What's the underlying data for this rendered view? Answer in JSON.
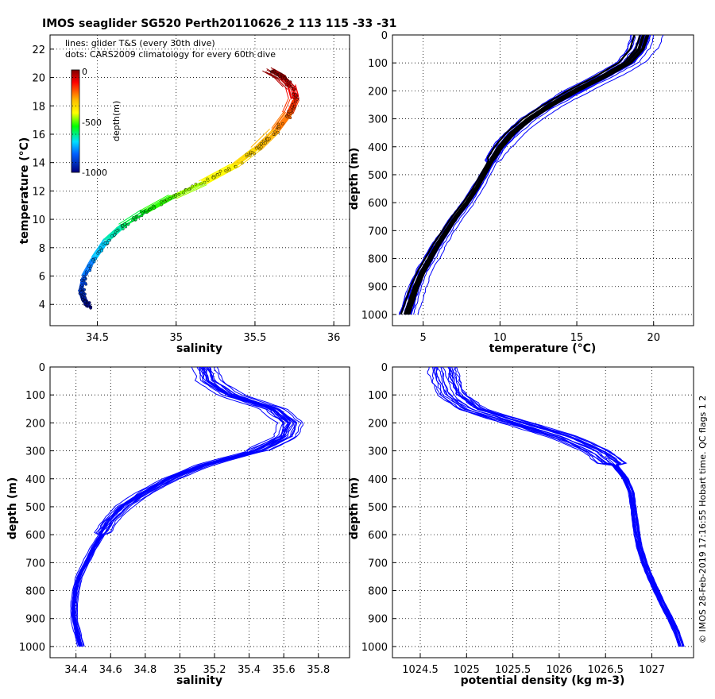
{
  "title": "IMOS seaglider SG520 Perth20110626_2 113  115  -33  -31",
  "footer": "© IMOS 28-Feb-2019 17:16:55 Hobart time. QC flags 1  2",
  "annotations": {
    "line1": "lines: glider T&S (every 30th dive)",
    "line2": "dots: CARS2009 climatology for every 60th dive"
  },
  "colorbar": {
    "label": "depth(m)",
    "ticks": [
      "0",
      "-500",
      "-1000"
    ],
    "range": [
      -1000,
      0
    ]
  },
  "colors": {
    "glider_lines": "#0000ff",
    "climatology": "#000000"
  },
  "chart_data": [
    {
      "id": "ts",
      "type": "line",
      "xlabel": "salinity",
      "ylabel": "temperature (°C)",
      "xlim": [
        34.2,
        36.1
      ],
      "ylim": [
        2.5,
        23
      ],
      "xticks": [
        34.5,
        35,
        35.5,
        36
      ],
      "xticklabels": [
        "34.5",
        "35",
        "35.5",
        "36"
      ],
      "yticks": [
        4,
        6,
        8,
        10,
        12,
        14,
        16,
        18,
        20,
        22
      ],
      "yticklabels": [
        "4",
        "6",
        "8",
        "10",
        "12",
        "14",
        "16",
        "18",
        "20",
        "22"
      ],
      "grid": true,
      "color_by": "depth",
      "profile": {
        "salinity": [
          34.45,
          34.42,
          34.4,
          34.42,
          34.48,
          34.56,
          34.66,
          34.8,
          34.98,
          35.18,
          35.38,
          35.52,
          35.64,
          35.72,
          35.76,
          35.74,
          35.68,
          35.6
        ],
        "temperature": [
          3.8,
          4.3,
          5.0,
          6.0,
          7.2,
          8.5,
          9.5,
          10.5,
          11.6,
          12.6,
          13.8,
          15.0,
          16.3,
          17.5,
          18.5,
          19.3,
          20.0,
          20.5
        ],
        "depth": [
          1000,
          950,
          900,
          830,
          760,
          690,
          620,
          560,
          500,
          440,
          380,
          320,
          260,
          200,
          140,
          80,
          30,
          0
        ]
      }
    },
    {
      "id": "temp_depth",
      "type": "line",
      "xlabel": "temperature (°C)",
      "ylabel": "depth (m)",
      "xlim": [
        3,
        22.6
      ],
      "ylim": [
        1040,
        0
      ],
      "xticks": [
        5,
        10,
        15,
        20
      ],
      "xticklabels": [
        "5",
        "10",
        "15",
        "20"
      ],
      "yticks": [
        0,
        100,
        200,
        300,
        400,
        500,
        600,
        700,
        800,
        900,
        1000
      ],
      "yticklabels": [
        "0",
        "100",
        "200",
        "300",
        "400",
        "500",
        "600",
        "700",
        "800",
        "900",
        "1000"
      ],
      "grid": true,
      "profile": {
        "depth": [
          0,
          50,
          100,
          150,
          200,
          250,
          300,
          350,
          400,
          450,
          500,
          550,
          600,
          650,
          700,
          750,
          800,
          850,
          900,
          950,
          1000
        ],
        "value": [
          19.5,
          19.2,
          18.4,
          16.8,
          15.0,
          13.4,
          12.0,
          10.9,
          10.1,
          9.5,
          9.0,
          8.5,
          7.9,
          7.2,
          6.6,
          6.0,
          5.5,
          5.0,
          4.6,
          4.3,
          4.0
        ]
      }
    },
    {
      "id": "sal_depth",
      "type": "line",
      "xlabel": "salinity",
      "ylabel": "depth (m)",
      "xlim": [
        34.25,
        35.98
      ],
      "ylim": [
        1040,
        0
      ],
      "xticks": [
        34.4,
        34.6,
        34.8,
        35,
        35.2,
        35.4,
        35.6,
        35.8
      ],
      "xticklabels": [
        "34.4",
        "34.6",
        "34.8",
        "35",
        "35.2",
        "35.4",
        "35.6",
        "35.8"
      ],
      "yticks": [
        0,
        100,
        200,
        300,
        400,
        500,
        600,
        700,
        800,
        900,
        1000
      ],
      "yticklabels": [
        "0",
        "100",
        "200",
        "300",
        "400",
        "500",
        "600",
        "700",
        "800",
        "900",
        "1000"
      ],
      "grid": true,
      "profile": {
        "depth": [
          0,
          50,
          100,
          150,
          200,
          250,
          300,
          350,
          400,
          450,
          500,
          550,
          600,
          650,
          700,
          750,
          800,
          850,
          900,
          950,
          1000
        ],
        "value": [
          35.15,
          35.18,
          35.3,
          35.55,
          35.65,
          35.62,
          35.45,
          35.15,
          34.95,
          34.8,
          34.68,
          34.6,
          34.55,
          34.5,
          34.46,
          34.42,
          34.4,
          34.39,
          34.39,
          34.41,
          34.43
        ]
      }
    },
    {
      "id": "dens_depth",
      "type": "line",
      "xlabel": "potential density (kg m-3)",
      "ylabel": "depth (m)",
      "xlim": [
        1024.2,
        1027.45
      ],
      "ylim": [
        1040,
        0
      ],
      "xticks": [
        1024.5,
        1025,
        1025.5,
        1026,
        1026.5,
        1027
      ],
      "xticklabels": [
        "1024.5",
        "1025",
        "1025.5",
        "1026",
        "1026.5",
        "1027"
      ],
      "yticks": [
        0,
        100,
        200,
        300,
        400,
        500,
        600,
        700,
        800,
        900,
        1000
      ],
      "yticklabels": [
        "0",
        "100",
        "200",
        "300",
        "400",
        "500",
        "600",
        "700",
        "800",
        "900",
        "1000"
      ],
      "grid": true,
      "profile": {
        "depth": [
          0,
          50,
          100,
          150,
          200,
          250,
          300,
          350,
          400,
          450,
          500,
          550,
          600,
          650,
          700,
          750,
          800,
          850,
          900,
          950,
          1000
        ],
        "value": [
          1024.75,
          1024.78,
          1024.85,
          1025.05,
          1025.55,
          1026.05,
          1026.4,
          1026.6,
          1026.72,
          1026.78,
          1026.8,
          1026.82,
          1026.84,
          1026.87,
          1026.92,
          1026.98,
          1027.05,
          1027.12,
          1027.2,
          1027.27,
          1027.32
        ]
      }
    }
  ]
}
